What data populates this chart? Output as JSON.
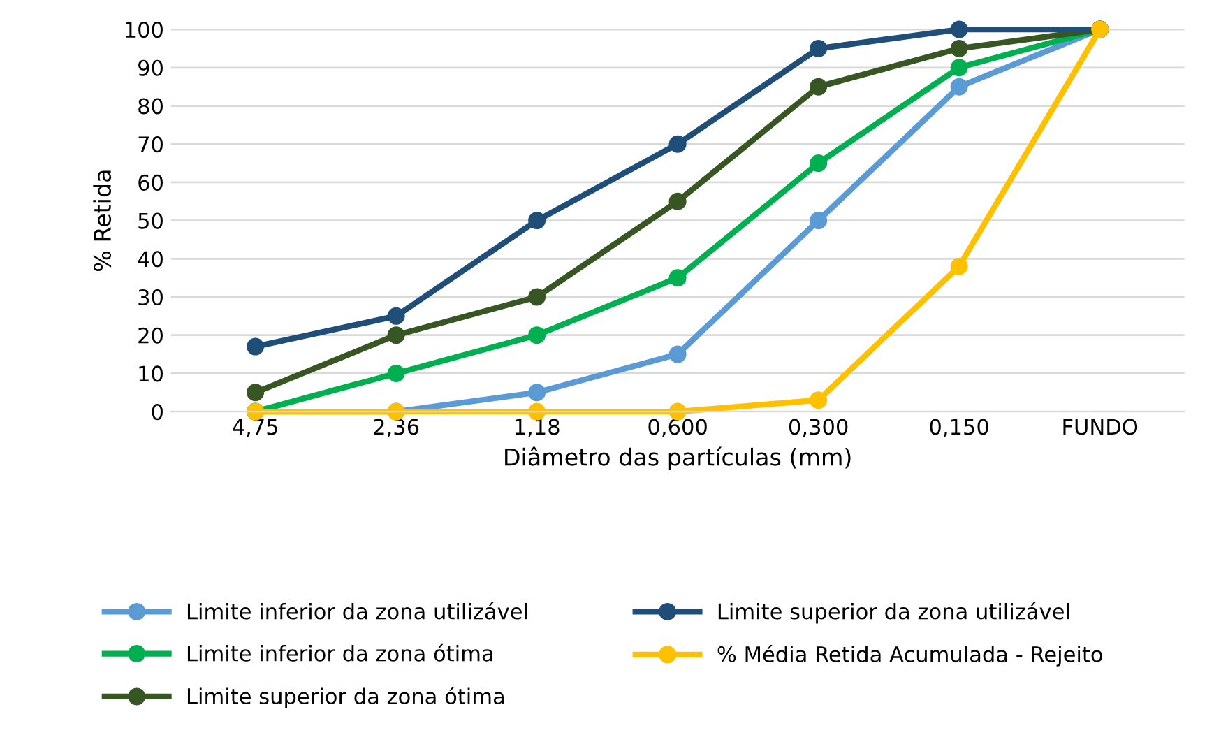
{
  "chart_data": {
    "type": "line",
    "xlabel": "Diâmetro das partículas (mm)",
    "ylabel": "% Retida",
    "categories": [
      "4,75",
      "2,36",
      "1,18",
      "0,600",
      "0,300",
      "0,150",
      "FUNDO"
    ],
    "series": [
      {
        "name": "Limite inferior da zona utilizável",
        "color": "#5b9bd5",
        "values": [
          0,
          0,
          5,
          15,
          50,
          85,
          100
        ]
      },
      {
        "name": "Limite inferior da zona ótima",
        "color": "#00b050",
        "values": [
          0,
          10,
          20,
          35,
          65,
          90,
          100
        ]
      },
      {
        "name": "Limite superior da zona ótima",
        "color": "#375623",
        "values": [
          5,
          20,
          30,
          55,
          85,
          95,
          100
        ]
      },
      {
        "name": "Limite superior da zona utilizável",
        "color": "#1f4e79",
        "values": [
          17,
          25,
          50,
          70,
          95,
          100,
          100
        ]
      },
      {
        "name": "% Média Retida Acumulada - Rejeito",
        "color": "#ffc000",
        "values": [
          0,
          0,
          0,
          0,
          3,
          38,
          100
        ]
      }
    ],
    "ylim": [
      0,
      100
    ],
    "yticks": [
      0,
      10,
      20,
      30,
      40,
      50,
      60,
      70,
      80,
      90,
      100
    ],
    "grid": "y",
    "legend": "bottom",
    "marker": "circle",
    "line_style": "solid"
  }
}
